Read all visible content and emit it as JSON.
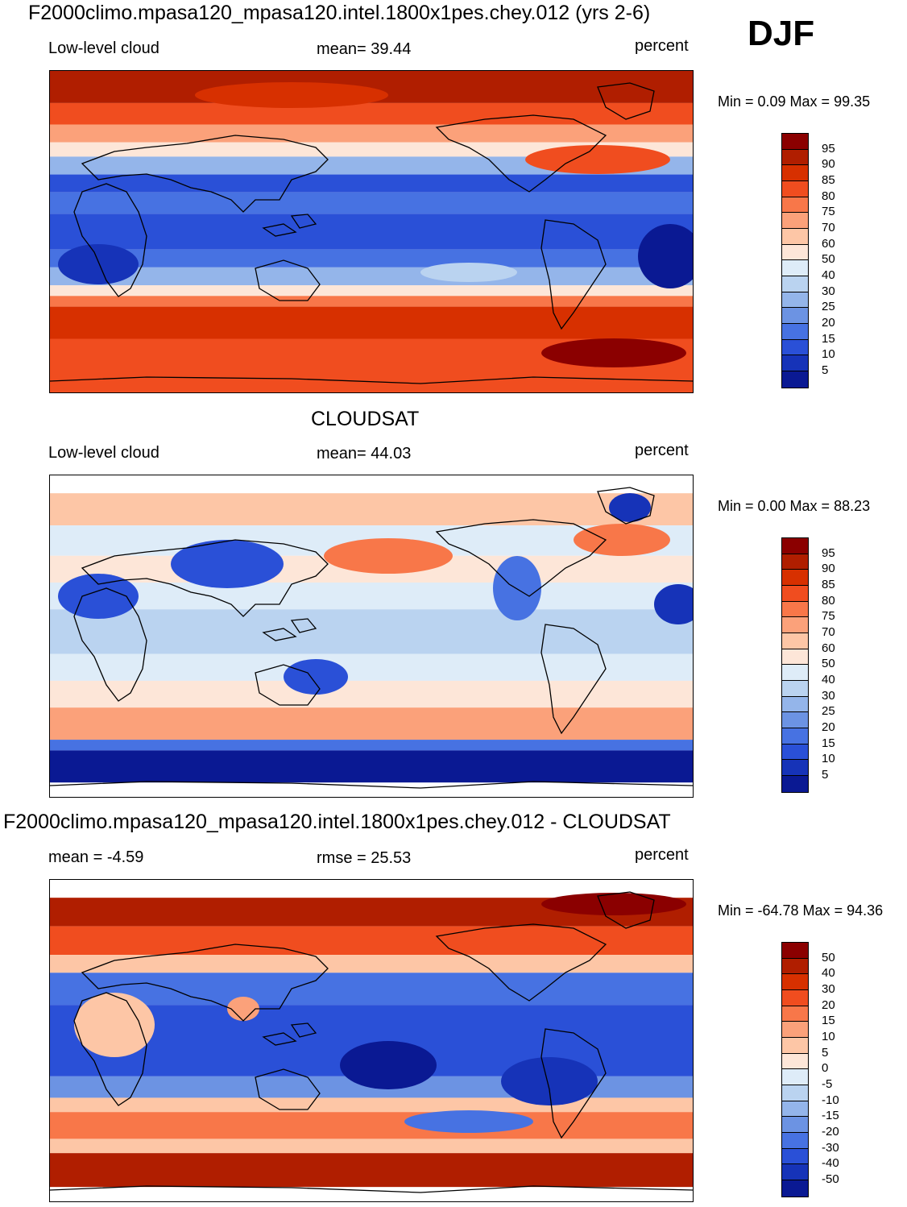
{
  "season": "DJF",
  "panels": [
    {
      "title": "F2000climo.mpasa120_mpasa120.intel.1800x1pes.chey.012 (yrs 2-6)",
      "left_label": "Low-level cloud",
      "center_label": "mean=  39.44",
      "units": "percent",
      "minmax": "Min =   0.09 Max =  99.35",
      "colorbar": {
        "labels": [
          "95",
          "90",
          "85",
          "80",
          "75",
          "70",
          "60",
          "50",
          "40",
          "30",
          "25",
          "20",
          "15",
          "10",
          "5"
        ],
        "colors": [
          "#8b0000",
          "#b01e00",
          "#d73000",
          "#f04d1f",
          "#f87749",
          "#fba17a",
          "#fdc6a6",
          "#fde6d8",
          "#deecf8",
          "#bad3f0",
          "#94b5ea",
          "#6c93e3",
          "#4772e2",
          "#2a50d7",
          "#1633b8",
          "#0a1993"
        ]
      }
    },
    {
      "title": "CLOUDSAT",
      "left_label": "Low-level cloud",
      "center_label": "mean=  44.03",
      "units": "percent",
      "minmax": "Min =   0.00 Max =  88.23",
      "colorbar": {
        "labels": [
          "95",
          "90",
          "85",
          "80",
          "75",
          "70",
          "60",
          "50",
          "40",
          "30",
          "25",
          "20",
          "15",
          "10",
          "5"
        ],
        "colors": [
          "#8b0000",
          "#b01e00",
          "#d73000",
          "#f04d1f",
          "#f87749",
          "#fba17a",
          "#fdc6a6",
          "#fde6d8",
          "#deecf8",
          "#bad3f0",
          "#94b5ea",
          "#6c93e3",
          "#4772e2",
          "#2a50d7",
          "#1633b8",
          "#0a1993"
        ]
      }
    },
    {
      "title": "F2000climo.mpasa120_mpasa120.intel.1800x1pes.chey.012 - CLOUDSAT",
      "left_label": "mean =  -4.59",
      "center_label": "rmse =  25.53",
      "units": "percent",
      "minmax": "Min = -64.78 Max =  94.36",
      "colorbar": {
        "labels": [
          "50",
          "40",
          "30",
          "20",
          "15",
          "10",
          "5",
          "0",
          "-5",
          "-10",
          "-15",
          "-20",
          "-30",
          "-40",
          "-50"
        ],
        "colors": [
          "#8b0000",
          "#b01e00",
          "#d73000",
          "#f04d1f",
          "#f87749",
          "#fba17a",
          "#fdc6a6",
          "#fde6d8",
          "#deecf8",
          "#bad3f0",
          "#94b5ea",
          "#6c93e3",
          "#4772e2",
          "#2a50d7",
          "#1633b8",
          "#0a1993"
        ]
      }
    }
  ],
  "map_fields": {
    "panel0_bands": [
      {
        "lat_top": 90,
        "lat_bot": 72,
        "color": "#b01e00"
      },
      {
        "lat_top": 72,
        "lat_bot": 60,
        "color": "#f04d1f"
      },
      {
        "lat_top": 60,
        "lat_bot": 50,
        "color": "#fba17a"
      },
      {
        "lat_top": 50,
        "lat_bot": 42,
        "color": "#fde6d8"
      },
      {
        "lat_top": 42,
        "lat_bot": 32,
        "color": "#94b5ea"
      },
      {
        "lat_top": 32,
        "lat_bot": 22,
        "color": "#2a50d7"
      },
      {
        "lat_top": 22,
        "lat_bot": 10,
        "color": "#4772e2"
      },
      {
        "lat_top": 10,
        "lat_bot": -10,
        "color": "#2a50d7"
      },
      {
        "lat_top": -10,
        "lat_bot": -20,
        "color": "#4772e2"
      },
      {
        "lat_top": -20,
        "lat_bot": -30,
        "color": "#94b5ea"
      },
      {
        "lat_top": -30,
        "lat_bot": -36,
        "color": "#fde6d8"
      },
      {
        "lat_top": -36,
        "lat_bot": -42,
        "color": "#f87749"
      },
      {
        "lat_top": -42,
        "lat_bot": -60,
        "color": "#d73000"
      },
      {
        "lat_top": -60,
        "lat_bot": -90,
        "color": "#f04d1f"
      }
    ],
    "panel1_bands": [
      {
        "lat_top": 90,
        "lat_bot": 80,
        "color": "#ffffff"
      },
      {
        "lat_top": 80,
        "lat_bot": 62,
        "color": "#fdc6a6"
      },
      {
        "lat_top": 62,
        "lat_bot": 45,
        "color": "#deecf8"
      },
      {
        "lat_top": 45,
        "lat_bot": 30,
        "color": "#fde6d8"
      },
      {
        "lat_top": 30,
        "lat_bot": 15,
        "color": "#deecf8"
      },
      {
        "lat_top": 15,
        "lat_bot": -10,
        "color": "#bad3f0"
      },
      {
        "lat_top": -10,
        "lat_bot": -25,
        "color": "#deecf8"
      },
      {
        "lat_top": -25,
        "lat_bot": -40,
        "color": "#fde6d8"
      },
      {
        "lat_top": -40,
        "lat_bot": -58,
        "color": "#fba17a"
      },
      {
        "lat_top": -58,
        "lat_bot": -64,
        "color": "#4772e2"
      },
      {
        "lat_top": -64,
        "lat_bot": -82,
        "color": "#0a1993"
      },
      {
        "lat_top": -82,
        "lat_bot": -90,
        "color": "#ffffff"
      }
    ],
    "panel2_bands": [
      {
        "lat_top": 90,
        "lat_bot": 80,
        "color": "#ffffff"
      },
      {
        "lat_top": 80,
        "lat_bot": 64,
        "color": "#b01e00"
      },
      {
        "lat_top": 64,
        "lat_bot": 48,
        "color": "#f04d1f"
      },
      {
        "lat_top": 48,
        "lat_bot": 38,
        "color": "#fdc6a6"
      },
      {
        "lat_top": 38,
        "lat_bot": 20,
        "color": "#4772e2"
      },
      {
        "lat_top": 20,
        "lat_bot": -20,
        "color": "#2a50d7"
      },
      {
        "lat_top": -20,
        "lat_bot": -32,
        "color": "#6c93e3"
      },
      {
        "lat_top": -32,
        "lat_bot": -40,
        "color": "#fdc6a6"
      },
      {
        "lat_top": -40,
        "lat_bot": -55,
        "color": "#f87749"
      },
      {
        "lat_top": -55,
        "lat_bot": -63,
        "color": "#fdc6a6"
      },
      {
        "lat_top": -63,
        "lat_bot": -82,
        "color": "#b01e00"
      },
      {
        "lat_top": -82,
        "lat_bot": -90,
        "color": "#ffffff"
      }
    ]
  }
}
